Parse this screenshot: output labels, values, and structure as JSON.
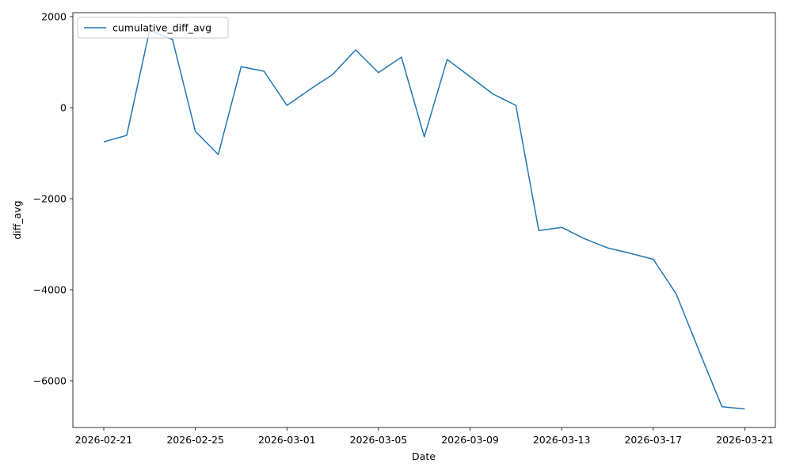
{
  "chart_data": {
    "type": "line",
    "xlabel": "Date",
    "ylabel": "diff_avg",
    "x": [
      "2026-02-21",
      "2026-02-22",
      "2026-02-23",
      "2026-02-24",
      "2026-02-25",
      "2026-02-26",
      "2026-02-27",
      "2026-02-28",
      "2026-03-01",
      "2026-03-02",
      "2026-03-03",
      "2026-03-04",
      "2026-03-05",
      "2026-03-06",
      "2026-03-07",
      "2026-03-08",
      "2026-03-09",
      "2026-03-10",
      "2026-03-11",
      "2026-03-12",
      "2026-03-13",
      "2026-03-14",
      "2026-03-15",
      "2026-03-16",
      "2026-03-17",
      "2026-03-18",
      "2026-03-19",
      "2026-03-20",
      "2026-03-21"
    ],
    "series": [
      {
        "name": "cumulative_diff_avg",
        "color": "#1f77b4",
        "values": [
          -750,
          -610,
          1700,
          1500,
          -520,
          -1030,
          900,
          800,
          50,
          400,
          730,
          1270,
          770,
          1110,
          -640,
          1060,
          680,
          300,
          50,
          -2700,
          -2630,
          -2880,
          -3080,
          -3200,
          -3330,
          -4090,
          -5340,
          -6570,
          -6620
        ]
      }
    ],
    "xlim": [
      "2026-02-19T15:36",
      "2026-03-22T08:00"
    ],
    "xticks": [
      "2026-02-21",
      "2026-02-25",
      "2026-03-01",
      "2026-03-05",
      "2026-03-09",
      "2026-03-13",
      "2026-03-17",
      "2026-03-21"
    ],
    "ylim": [
      -7026,
      2087
    ],
    "yticks": [
      {
        "value": -6000,
        "label": "−6000"
      },
      {
        "value": -4000,
        "label": "−4000"
      },
      {
        "value": -2000,
        "label": "−2000"
      },
      0,
      2000
    ],
    "legend": "upper left",
    "grid": false
  }
}
